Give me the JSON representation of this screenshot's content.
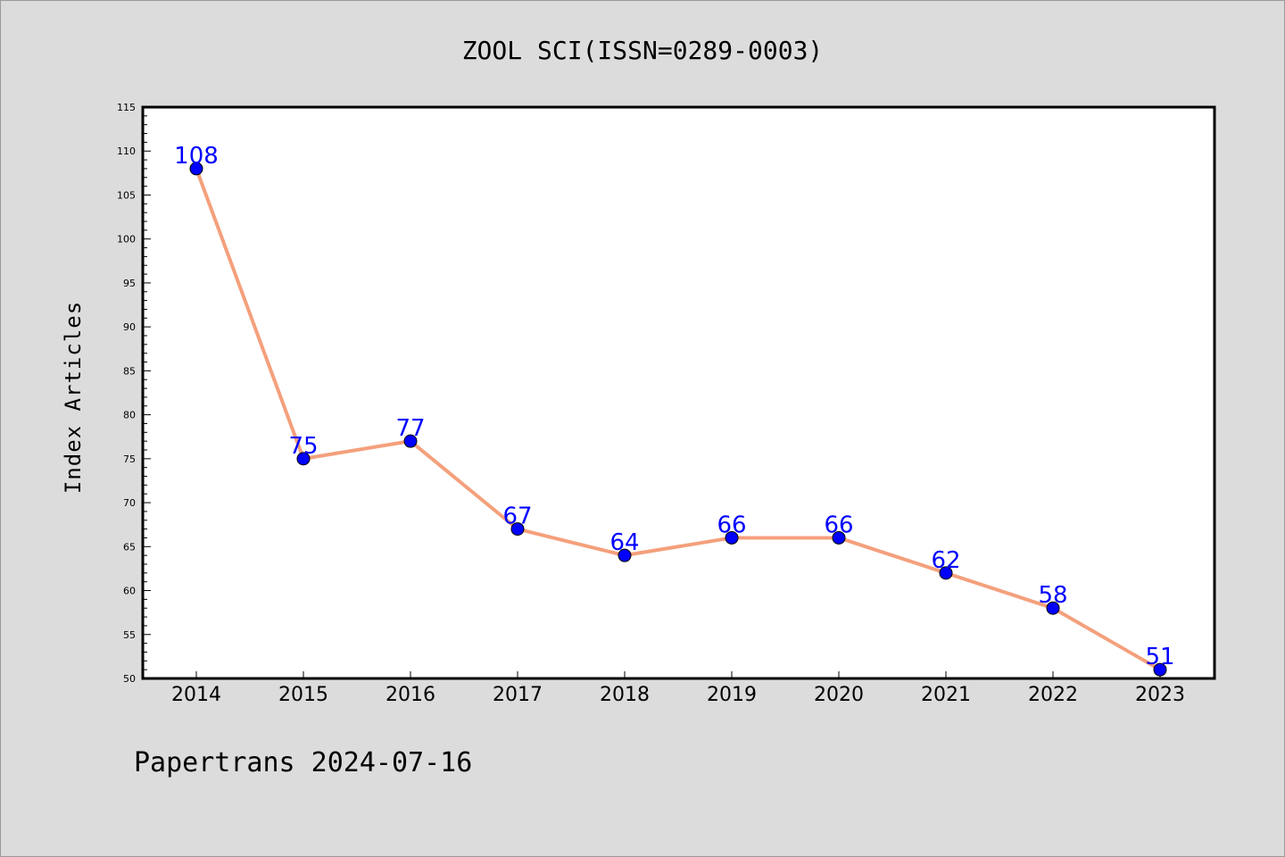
{
  "chart_data": {
    "type": "line",
    "title": "ZOOL SCI(ISSN=0289-0003)",
    "xlabel": "",
    "ylabel": "Index Articles",
    "categories": [
      "2014",
      "2015",
      "2016",
      "2017",
      "2018",
      "2019",
      "2020",
      "2021",
      "2022",
      "2023"
    ],
    "series": [
      {
        "values": [
          108,
          75,
          77,
          67,
          64,
          66,
          66,
          62,
          58,
          51
        ]
      }
    ],
    "ylim": [
      50,
      115
    ],
    "yticks": [
      50,
      55,
      60,
      65,
      70,
      75,
      80,
      85,
      90,
      95,
      100,
      105,
      110,
      115
    ],
    "grid": false,
    "legend": "none",
    "colors": {
      "line": "#f4a07c",
      "marker": "#0000ff",
      "label": "#0000ff",
      "background": "#dcdcdc",
      "plot_background": "#ffffff"
    }
  },
  "footer": "Papertrans 2024-07-16"
}
